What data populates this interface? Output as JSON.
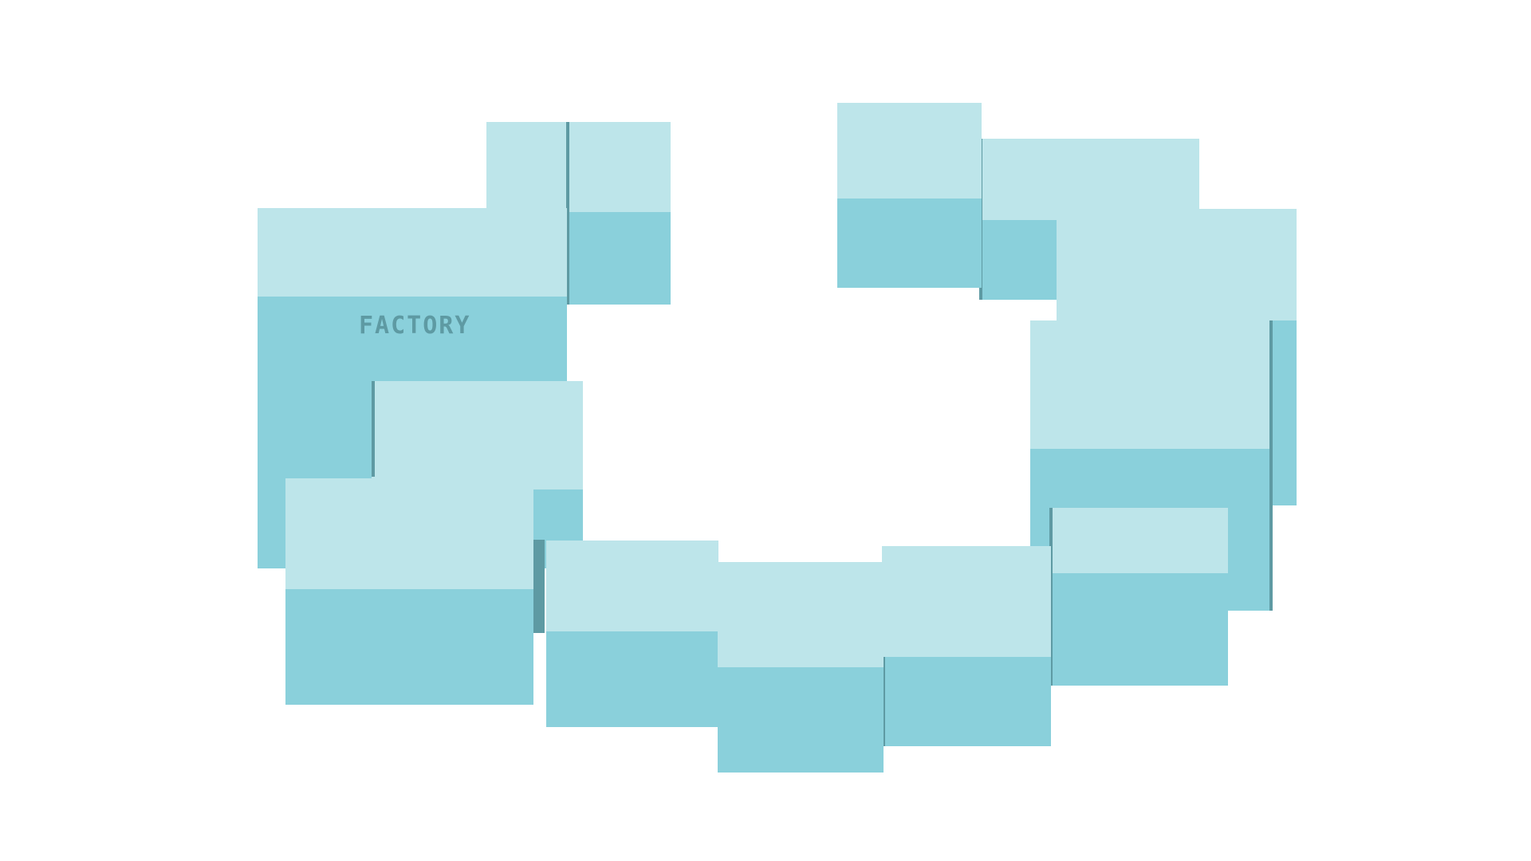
{
  "scene": {
    "background": "#ffffff",
    "colors": {
      "block_top": "#bde5ea",
      "block_front": "#8ad0db",
      "block_shadow": "#5e9aa3",
      "label": "#5e9aa3"
    },
    "blocks": [
      {
        "id": "block-factory",
        "label": "FACTORY"
      },
      {
        "id": "block-nw-upper",
        "label": ""
      },
      {
        "id": "block-west-mid",
        "label": ""
      },
      {
        "id": "block-sw",
        "label": ""
      },
      {
        "id": "block-south-1",
        "label": ""
      },
      {
        "id": "block-south-2",
        "label": ""
      },
      {
        "id": "block-south-3",
        "label": ""
      },
      {
        "id": "block-south-4",
        "label": ""
      },
      {
        "id": "block-east-mid",
        "label": ""
      },
      {
        "id": "block-east-upper",
        "label": ""
      },
      {
        "id": "block-ne-1",
        "label": ""
      },
      {
        "id": "block-ne-2",
        "label": ""
      }
    ]
  }
}
